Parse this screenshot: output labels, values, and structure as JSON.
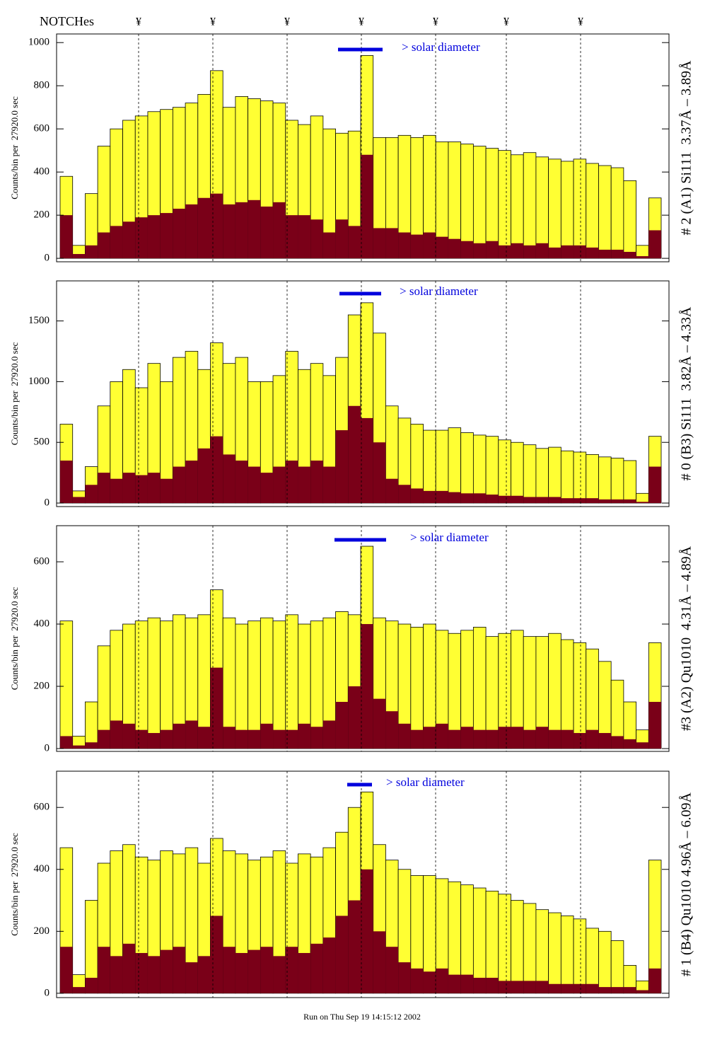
{
  "notches": {
    "label": "NOTCHes",
    "markers": [
      "¥",
      "¥",
      "¥",
      "¥",
      "¥",
      "¥",
      "¥"
    ]
  },
  "footer": "Run on Thu Sep 19 14:15:12 2002",
  "chart_data": [
    {
      "type": "bar",
      "ylabel": "Counts/bin per  27920.0 sec",
      "side_label": "# 2 (A1) Si111  3.37Å – 3.89Å",
      "annotation": "> solar diameter",
      "categories": [
        null,
        null,
        null,
        null,
        null,
        null,
        null,
        null,
        null,
        null,
        null,
        null,
        null,
        null,
        null,
        null,
        null,
        null,
        null,
        null,
        null,
        null,
        null,
        null,
        null,
        null,
        null,
        null,
        null,
        null,
        null,
        null,
        null,
        null,
        null,
        null,
        null,
        null,
        null,
        null,
        null,
        null,
        null,
        null,
        null,
        null,
        null,
        null
      ],
      "series": [
        {
          "color": "#ffff33",
          "values": [
            380,
            60,
            300,
            520,
            600,
            640,
            660,
            680,
            690,
            700,
            720,
            760,
            870,
            700,
            750,
            740,
            730,
            720,
            640,
            620,
            660,
            600,
            580,
            590,
            940,
            560,
            560,
            570,
            560,
            570,
            540,
            540,
            530,
            520,
            510,
            500,
            480,
            490,
            470,
            460,
            450,
            460,
            440,
            430,
            420,
            360,
            60,
            280
          ]
        },
        {
          "color": "#7a0018",
          "values": [
            200,
            20,
            60,
            120,
            150,
            170,
            190,
            200,
            210,
            230,
            250,
            280,
            300,
            250,
            260,
            270,
            240,
            260,
            200,
            200,
            180,
            120,
            180,
            150,
            480,
            140,
            140,
            120,
            110,
            120,
            100,
            90,
            80,
            70,
            80,
            60,
            70,
            60,
            70,
            50,
            60,
            60,
            50,
            40,
            40,
            30,
            10,
            130
          ]
        }
      ],
      "ylim": [
        -16,
        1040
      ],
      "yticks": [
        0,
        200,
        400,
        600,
        800,
        1000
      ]
    },
    {
      "type": "bar",
      "ylabel": "Counts/bin per  27920.0 sec",
      "side_label": "# 0 (B3) Si111  3.82Å – 4.33Å",
      "annotation": "> solar diameter",
      "categories": [
        null,
        null,
        null,
        null,
        null,
        null,
        null,
        null,
        null,
        null,
        null,
        null,
        null,
        null,
        null,
        null,
        null,
        null,
        null,
        null,
        null,
        null,
        null,
        null,
        null,
        null,
        null,
        null,
        null,
        null,
        null,
        null,
        null,
        null,
        null,
        null,
        null,
        null,
        null,
        null,
        null,
        null,
        null,
        null,
        null,
        null,
        null,
        null
      ],
      "series": [
        {
          "color": "#ffff33",
          "values": [
            650,
            100,
            300,
            800,
            1000,
            1100,
            950,
            1150,
            1000,
            1200,
            1250,
            1100,
            1320,
            1150,
            1200,
            1000,
            1000,
            1050,
            1250,
            1100,
            1150,
            1050,
            1200,
            1550,
            1650,
            1400,
            800,
            700,
            650,
            600,
            600,
            620,
            580,
            560,
            550,
            520,
            500,
            480,
            450,
            460,
            430,
            420,
            400,
            380,
            370,
            350,
            80,
            550
          ]
        },
        {
          "color": "#7a0018",
          "values": [
            350,
            50,
            150,
            250,
            200,
            250,
            230,
            250,
            200,
            300,
            350,
            450,
            550,
            400,
            350,
            300,
            250,
            300,
            350,
            300,
            350,
            300,
            600,
            800,
            700,
            500,
            200,
            150,
            120,
            100,
            100,
            90,
            80,
            80,
            70,
            60,
            60,
            50,
            50,
            50,
            40,
            40,
            40,
            30,
            30,
            30,
            10,
            300
          ]
        }
      ],
      "ylim": [
        -29,
        1830
      ],
      "yticks": [
        0,
        500,
        1000,
        1500
      ]
    },
    {
      "type": "bar",
      "ylabel": "Counts/bin per  27920.0 sec",
      "side_label": "#3 (A2) Qu1010  4.31Å – 4.89Å",
      "annotation": "> solar diameter",
      "categories": [
        null,
        null,
        null,
        null,
        null,
        null,
        null,
        null,
        null,
        null,
        null,
        null,
        null,
        null,
        null,
        null,
        null,
        null,
        null,
        null,
        null,
        null,
        null,
        null,
        null,
        null,
        null,
        null,
        null,
        null,
        null,
        null,
        null,
        null,
        null,
        null,
        null,
        null,
        null,
        null,
        null,
        null,
        null,
        null,
        null,
        null,
        null,
        null
      ],
      "series": [
        {
          "color": "#ffff33",
          "values": [
            410,
            40,
            150,
            330,
            380,
            400,
            410,
            420,
            410,
            430,
            420,
            430,
            510,
            420,
            400,
            410,
            420,
            410,
            430,
            400,
            410,
            420,
            440,
            430,
            650,
            420,
            410,
            400,
            390,
            400,
            380,
            370,
            380,
            390,
            360,
            370,
            380,
            360,
            360,
            370,
            350,
            340,
            320,
            280,
            220,
            150,
            60,
            340
          ]
        },
        {
          "color": "#7a0018",
          "values": [
            40,
            10,
            20,
            60,
            90,
            80,
            60,
            50,
            60,
            80,
            90,
            70,
            260,
            70,
            60,
            60,
            80,
            60,
            60,
            80,
            70,
            90,
            150,
            200,
            400,
            160,
            120,
            80,
            60,
            70,
            80,
            60,
            70,
            60,
            60,
            70,
            70,
            60,
            70,
            60,
            60,
            50,
            60,
            50,
            40,
            30,
            20,
            150
          ]
        }
      ],
      "ylim": [
        -9,
        716
      ],
      "yticks": [
        0,
        200,
        400,
        600
      ]
    },
    {
      "type": "bar",
      "ylabel": "Counts/bin per  27920.0 sec",
      "side_label": "# 1 (B4) Qu1010 4.96Å – 6.09Å",
      "annotation": "> solar diameter",
      "categories": [
        null,
        null,
        null,
        null,
        null,
        null,
        null,
        null,
        null,
        null,
        null,
        null,
        null,
        null,
        null,
        null,
        null,
        null,
        null,
        null,
        null,
        null,
        null,
        null,
        null,
        null,
        null,
        null,
        null,
        null,
        null,
        null,
        null,
        null,
        null,
        null,
        null,
        null,
        null,
        null,
        null,
        null,
        null,
        null,
        null,
        null,
        null,
        null
      ],
      "series": [
        {
          "color": "#ffff33",
          "values": [
            470,
            60,
            300,
            420,
            460,
            480,
            440,
            430,
            460,
            450,
            470,
            420,
            500,
            460,
            450,
            430,
            440,
            460,
            420,
            450,
            440,
            470,
            520,
            600,
            650,
            480,
            430,
            400,
            380,
            380,
            370,
            360,
            350,
            340,
            330,
            320,
            300,
            290,
            270,
            260,
            250,
            240,
            210,
            200,
            170,
            90,
            40,
            430
          ]
        },
        {
          "color": "#7a0018",
          "values": [
            150,
            20,
            50,
            150,
            120,
            160,
            130,
            120,
            140,
            150,
            100,
            120,
            250,
            150,
            130,
            140,
            150,
            120,
            150,
            130,
            160,
            180,
            250,
            300,
            400,
            200,
            150,
            100,
            80,
            70,
            80,
            60,
            60,
            50,
            50,
            40,
            40,
            40,
            40,
            30,
            30,
            30,
            30,
            20,
            20,
            20,
            10,
            80
          ]
        }
      ],
      "ylim": [
        -14,
        717
      ],
      "yticks": [
        0,
        200,
        400,
        600
      ]
    }
  ]
}
